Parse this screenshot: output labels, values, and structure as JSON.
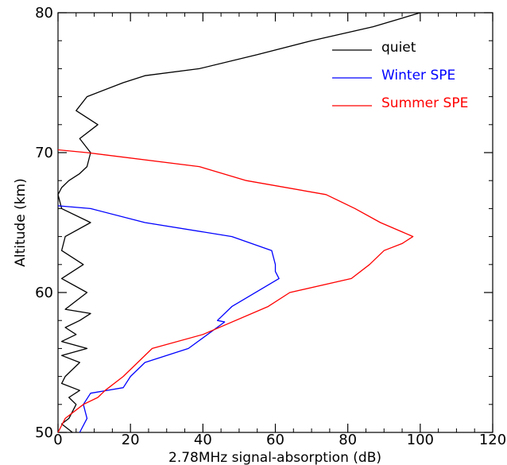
{
  "chart_data": {
    "type": "line",
    "title": "",
    "xlabel": "2.78MHz signal-absorption (dB)",
    "ylabel": "Altitude (km)",
    "xlim": [
      0,
      120
    ],
    "ylim": [
      50,
      80
    ],
    "xticks": [
      0,
      20,
      40,
      60,
      80,
      100,
      120
    ],
    "yticks": [
      50,
      60,
      70,
      80
    ],
    "xtick_labels": [
      "0",
      "20",
      "40",
      "60",
      "80",
      "100",
      "120"
    ],
    "ytick_labels": [
      "50",
      "60",
      "70",
      "80"
    ],
    "grid": false,
    "legend_position": "top-right",
    "series": [
      {
        "name": "quiet",
        "color": "#000000",
        "x": [
          4,
          1,
          3,
          5,
          3,
          6,
          1,
          2,
          6,
          1,
          8,
          1,
          5,
          2,
          6,
          9,
          2,
          8,
          1,
          7,
          1,
          2,
          9,
          1,
          0,
          1,
          3,
          6,
          8,
          9,
          6,
          11,
          5,
          8,
          18,
          24,
          39,
          55,
          70,
          87,
          100
        ],
        "y": [
          50,
          50.6,
          51,
          52,
          52.5,
          53,
          53.5,
          54,
          55,
          55.5,
          56,
          56.5,
          57,
          57.5,
          58,
          58.5,
          58.8,
          60,
          61,
          62,
          63,
          64,
          65,
          66,
          67,
          67.5,
          68,
          68.5,
          69,
          70,
          71,
          72,
          73,
          74,
          75,
          75.5,
          76,
          77,
          78,
          79,
          80
        ]
      },
      {
        "name": "Winter SPE",
        "color": "#0000ff",
        "x": [
          6,
          8,
          7,
          9,
          18,
          20,
          24,
          36,
          46,
          44,
          48,
          61,
          60,
          60,
          59,
          48,
          24,
          9,
          0
        ],
        "y": [
          50,
          51,
          52,
          52.8,
          53.2,
          54,
          55,
          56,
          57.9,
          58,
          59,
          61,
          61.5,
          62,
          63,
          64,
          65,
          66,
          66.2
        ]
      },
      {
        "name": "Summer SPE",
        "color": "#ff0000",
        "x": [
          0,
          2,
          7,
          11,
          13,
          18,
          22,
          26,
          40,
          58,
          64,
          81,
          86,
          90,
          95,
          98,
          89,
          82,
          74,
          52,
          39,
          8,
          0
        ],
        "y": [
          50,
          51,
          52,
          52.5,
          53,
          54,
          55,
          56,
          57,
          59,
          60,
          61,
          62,
          63,
          63.5,
          64,
          65,
          66,
          67,
          68,
          69,
          70,
          70.2
        ]
      }
    ]
  }
}
